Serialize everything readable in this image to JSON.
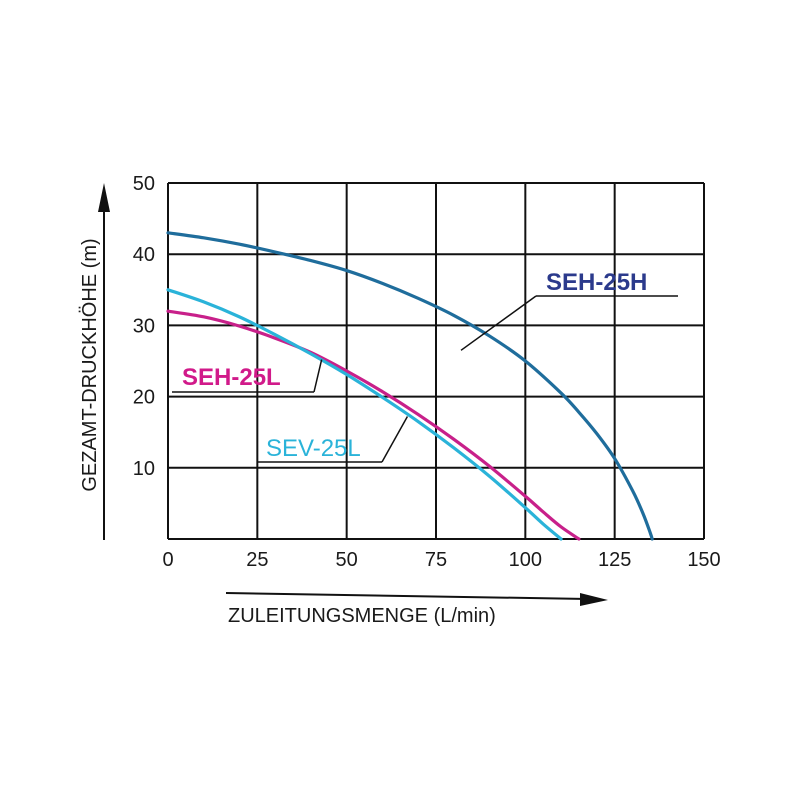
{
  "chart_data": {
    "type": "line",
    "xlabel": "ZULEITUNGSMENGE (L/min)",
    "ylabel": "GEZAMT-DRUCKHÖHE (m)",
    "xlim": [
      0,
      150
    ],
    "ylim": [
      0,
      50
    ],
    "x_ticks": [
      "0",
      "25",
      "50",
      "75",
      "100",
      "125",
      "150"
    ],
    "y_ticks": [
      "10",
      "20",
      "30",
      "40",
      "50"
    ],
    "grid": true,
    "series": [
      {
        "name": "SEH-25H",
        "color": "#1f6d9c",
        "label_color": "#2b3a8c",
        "label_style": "bold",
        "x": [
          0,
          10,
          20,
          30,
          40,
          50,
          60,
          70,
          80,
          90,
          100,
          110,
          115,
          120,
          125,
          130,
          133,
          135,
          135.5
        ],
        "y": [
          43,
          42.3,
          41.4,
          40.3,
          39.1,
          37.7,
          35.9,
          33.8,
          31.4,
          28.5,
          25,
          20.5,
          17.8,
          14.8,
          11.3,
          6.8,
          3.5,
          0.8,
          0
        ]
      },
      {
        "name": "SEH-25L",
        "color": "#c8208a",
        "label_color": "#d11a8a",
        "label_style": "bold",
        "x": [
          0,
          10,
          20,
          30,
          40,
          50,
          60,
          70,
          80,
          90,
          100,
          105,
          110,
          115
        ],
        "y": [
          32,
          31.2,
          29.9,
          28.2,
          26.2,
          23.6,
          20.7,
          17.5,
          14,
          10.2,
          6,
          3.8,
          1.7,
          0
        ]
      },
      {
        "name": "SEV-25L",
        "color": "#2ab3d9",
        "label_color": "#2ab3d9",
        "label_style": "plain",
        "x": [
          0,
          10,
          20,
          30,
          40,
          50,
          60,
          70,
          80,
          90,
          100,
          105,
          110
        ],
        "y": [
          35,
          33.3,
          31.2,
          28.7,
          26,
          23.1,
          19.9,
          16.5,
          12.8,
          8.8,
          4.4,
          2.1,
          0
        ]
      }
    ]
  }
}
